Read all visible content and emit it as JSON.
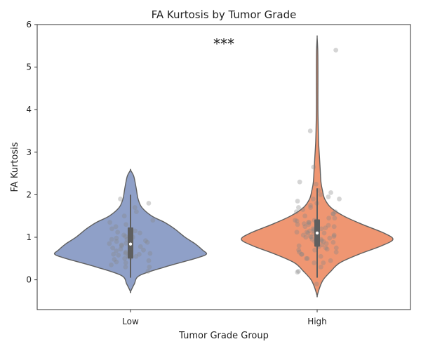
{
  "chart_data": {
    "type": "violin",
    "title": "FA Kurtosis by Tumor Grade",
    "xlabel": "Tumor Grade Group",
    "ylabel": "FA Kurtosis",
    "categories": [
      "Low",
      "High"
    ],
    "ylim": [
      -0.7,
      6.0
    ],
    "yticks": [
      0,
      1,
      2,
      3,
      4,
      5,
      6
    ],
    "grid": false,
    "colors": {
      "Low": "#8fa0c8",
      "High": "#ef9672",
      "edge": "#606060",
      "points": "#888888"
    },
    "annotation": {
      "text": "***",
      "x": 0.5,
      "y": 5.55
    },
    "groups": [
      {
        "name": "Low",
        "density": [
          [
            -0.28,
            0.0
          ],
          [
            -0.1,
            0.05
          ],
          [
            0.1,
            0.12
          ],
          [
            0.3,
            0.45
          ],
          [
            0.5,
            0.85
          ],
          [
            0.6,
            1.0
          ],
          [
            0.7,
            0.95
          ],
          [
            0.85,
            0.85
          ],
          [
            1.0,
            0.72
          ],
          [
            1.2,
            0.58
          ],
          [
            1.35,
            0.45
          ],
          [
            1.5,
            0.28
          ],
          [
            1.7,
            0.15
          ],
          [
            1.9,
            0.1
          ],
          [
            2.1,
            0.08
          ],
          [
            2.3,
            0.06
          ],
          [
            2.45,
            0.04
          ],
          [
            2.58,
            0.0
          ]
        ],
        "box": {
          "q1": 0.5,
          "median": 0.84,
          "q3": 1.23,
          "whisker_low": 0.05,
          "whisker_high": 2.0
        },
        "points": [
          0.2,
          0.3,
          0.35,
          0.4,
          0.45,
          0.48,
          0.5,
          0.52,
          0.55,
          0.58,
          0.6,
          0.62,
          0.65,
          0.68,
          0.7,
          0.72,
          0.75,
          0.78,
          0.8,
          0.82,
          0.85,
          0.88,
          0.9,
          0.92,
          0.95,
          0.98,
          1.0,
          1.05,
          1.1,
          1.15,
          1.2,
          1.25,
          1.3,
          1.35,
          1.4,
          1.5,
          1.6,
          1.7,
          1.8,
          1.9,
          0.3,
          0.55,
          0.62,
          0.7,
          0.86,
          1.02,
          1.12,
          0.42,
          0.6,
          0.95
        ]
      },
      {
        "name": "High",
        "density": [
          [
            -0.38,
            0.0
          ],
          [
            -0.2,
            0.03
          ],
          [
            0.0,
            0.08
          ],
          [
            0.2,
            0.18
          ],
          [
            0.4,
            0.3
          ],
          [
            0.6,
            0.55
          ],
          [
            0.8,
            0.85
          ],
          [
            0.95,
            1.0
          ],
          [
            1.1,
            0.88
          ],
          [
            1.3,
            0.6
          ],
          [
            1.5,
            0.35
          ],
          [
            1.7,
            0.18
          ],
          [
            1.9,
            0.1
          ],
          [
            2.1,
            0.07
          ],
          [
            2.3,
            0.05
          ],
          [
            2.6,
            0.04
          ],
          [
            2.9,
            0.03
          ],
          [
            3.2,
            0.02
          ],
          [
            3.5,
            0.015
          ],
          [
            4.0,
            0.01
          ],
          [
            4.5,
            0.01
          ],
          [
            5.0,
            0.01
          ],
          [
            5.4,
            0.008
          ],
          [
            5.7,
            0.0
          ]
        ],
        "box": {
          "q1": 0.78,
          "median": 1.1,
          "q3": 1.42,
          "whisker_low": 0.05,
          "whisker_high": 2.15
        },
        "points": [
          5.4,
          3.5,
          2.65,
          2.3,
          2.25,
          2.1,
          2.05,
          2.0,
          1.95,
          1.9,
          1.85,
          1.8,
          1.75,
          1.7,
          1.65,
          1.6,
          1.55,
          1.5,
          1.45,
          1.4,
          1.38,
          1.35,
          1.32,
          1.3,
          1.28,
          1.25,
          1.22,
          1.2,
          1.18,
          1.15,
          1.12,
          1.1,
          1.08,
          1.05,
          1.02,
          1.0,
          0.98,
          0.95,
          0.92,
          0.9,
          0.88,
          0.85,
          0.82,
          0.8,
          0.78,
          0.75,
          0.72,
          0.7,
          0.65,
          0.6,
          0.55,
          0.5,
          0.45,
          0.4,
          0.3,
          0.2,
          0.18,
          -0.1,
          1.15,
          1.05,
          0.95,
          1.25,
          1.35,
          0.85,
          0.75,
          1.45,
          1.55,
          0.65,
          1.1,
          1.0,
          0.9,
          1.2,
          1.3,
          0.8,
          1.4,
          0.7,
          1.6,
          0.6,
          1.7,
          0.5,
          1.9,
          0.4,
          1.12,
          1.02,
          0.92
        ]
      }
    ]
  }
}
